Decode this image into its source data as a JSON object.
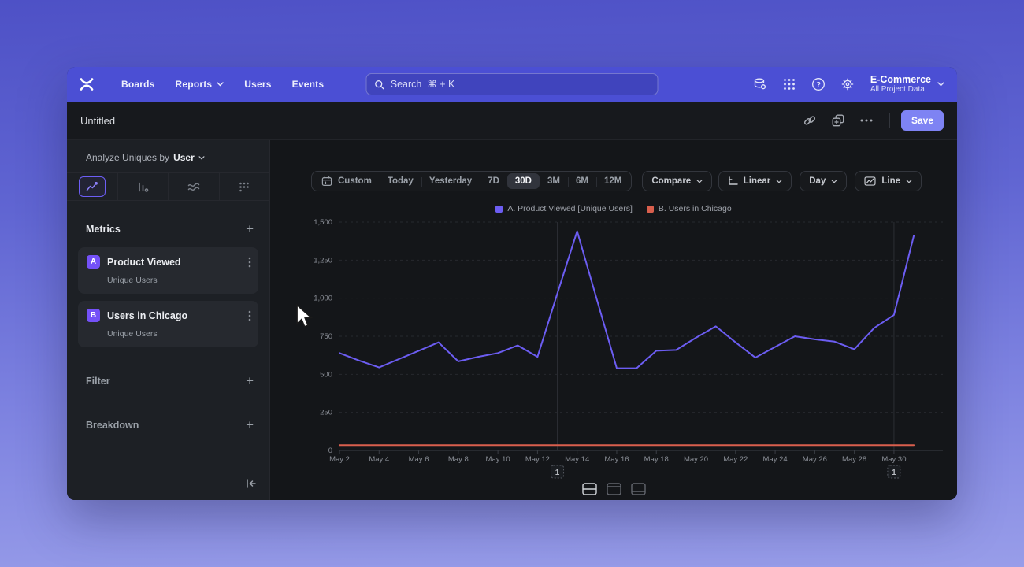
{
  "nav": {
    "items": [
      "Boards",
      "Reports",
      "Users",
      "Events"
    ],
    "search_placeholder": "Search  ⌘ + K",
    "project_name": "E-Commerce",
    "project_subtitle": "All Project Data"
  },
  "header": {
    "title": "Untitled",
    "save_label": "Save"
  },
  "sidebar": {
    "analyze_prefix": "Analyze Uniques by",
    "analyze_value": "User",
    "metrics_title": "Metrics",
    "metrics": [
      {
        "badge": "A",
        "name": "Product Viewed",
        "measure": "Unique Users"
      },
      {
        "badge": "B",
        "name": "Users in Chicago",
        "measure": "Unique Users"
      }
    ],
    "filter_title": "Filter",
    "breakdown_title": "Breakdown"
  },
  "toolbar": {
    "ranges": [
      "Custom",
      "Today",
      "Yesterday",
      "7D",
      "30D",
      "3M",
      "6M",
      "12M"
    ],
    "selected_range": "30D",
    "compare_label": "Compare",
    "scale_label": "Linear",
    "granularity_label": "Day",
    "chart_type_label": "Line"
  },
  "colors": {
    "nav_accent": "#4b4fd4",
    "save_button": "#7e83f3",
    "selected_tab_border": "#6d5ef5",
    "metric_badge": "#7451f8"
  },
  "chart_data": {
    "type": "line",
    "title": "",
    "xlabel": "",
    "ylabel": "",
    "ylim": [
      0,
      1500
    ],
    "y_ticks": [
      0,
      250,
      500,
      750,
      1000,
      1250,
      1500
    ],
    "y_tick_labels": [
      "0",
      "250",
      "500",
      "750",
      "1,000",
      "1,250",
      "1,500"
    ],
    "grid": "horizontal-dashed",
    "legend_position": "top-center",
    "x": [
      "May 2",
      "May 3",
      "May 4",
      "May 5",
      "May 6",
      "May 7",
      "May 8",
      "May 9",
      "May 10",
      "May 11",
      "May 12",
      "May 13",
      "May 14",
      "May 15",
      "May 16",
      "May 17",
      "May 18",
      "May 19",
      "May 20",
      "May 21",
      "May 22",
      "May 23",
      "May 24",
      "May 25",
      "May 26",
      "May 27",
      "May 28",
      "May 29",
      "May 30",
      "May 31"
    ],
    "x_tick_labels": [
      "May 2",
      "May 4",
      "May 6",
      "May 8",
      "May 10",
      "May 12",
      "May 14",
      "May 16",
      "May 18",
      "May 20",
      "May 22",
      "May 24",
      "May 26",
      "May 28",
      "May 30"
    ],
    "series": [
      {
        "name": "A. Product Viewed [Unique Users]",
        "color": "#6c5df2",
        "values": [
          640,
          590,
          545,
          600,
          655,
          710,
          585,
          615,
          640,
          690,
          615,
          1030,
          1440,
          990,
          540,
          540,
          655,
          660,
          740,
          815,
          710,
          610,
          680,
          750,
          730,
          715,
          665,
          805,
          890,
          1410
        ]
      },
      {
        "name": "B. Users in Chicago",
        "color": "#d95f4d",
        "values": [
          35,
          35,
          35,
          35,
          35,
          35,
          35,
          35,
          35,
          35,
          35,
          35,
          35,
          35,
          35,
          35,
          35,
          35,
          35,
          35,
          35,
          35,
          35,
          35,
          35,
          35,
          35,
          35,
          35,
          35
        ]
      }
    ],
    "annotations": [
      {
        "label": "1",
        "x": "May 13"
      },
      {
        "label": "1",
        "x": "May 30"
      }
    ]
  }
}
